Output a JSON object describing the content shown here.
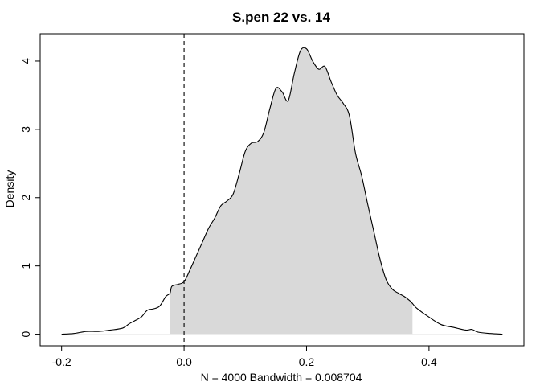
{
  "chart_data": {
    "type": "area",
    "title": "S.pen 22 vs. 14",
    "xlabel": "N = 4000   Bandwidth = 0.008704",
    "ylabel": "Density",
    "xlim": [
      -0.235,
      0.555
    ],
    "ylim": [
      -0.17,
      4.4
    ],
    "x_ticks": [
      -0.2,
      0.0,
      0.2,
      0.4
    ],
    "x_tick_labels": [
      "-0.2",
      "0.0",
      "0.2",
      "0.4"
    ],
    "y_ticks": [
      0,
      1,
      2,
      3,
      4
    ],
    "y_tick_labels": [
      "0",
      "1",
      "2",
      "3",
      "4"
    ],
    "reference_line_x": 0.0,
    "shaded_interval": [
      -0.023,
      0.373
    ],
    "grid": false,
    "legend": "none",
    "colors": {
      "fill": "#d9d9d9",
      "line": "#000000",
      "axis": "#000000"
    },
    "series": [
      {
        "x": [
          -0.2,
          -0.18,
          -0.16,
          -0.14,
          -0.12,
          -0.1,
          -0.09,
          -0.08,
          -0.07,
          -0.06,
          -0.05,
          -0.04,
          -0.03,
          -0.023,
          -0.02,
          -0.01,
          0.0,
          0.01,
          0.02,
          0.03,
          0.04,
          0.05,
          0.06,
          0.07,
          0.08,
          0.09,
          0.1,
          0.11,
          0.12,
          0.13,
          0.14,
          0.15,
          0.16,
          0.17,
          0.18,
          0.19,
          0.2,
          0.21,
          0.22,
          0.23,
          0.24,
          0.25,
          0.26,
          0.27,
          0.28,
          0.29,
          0.3,
          0.31,
          0.32,
          0.33,
          0.34,
          0.35,
          0.36,
          0.37,
          0.373,
          0.38,
          0.4,
          0.42,
          0.44,
          0.46,
          0.47,
          0.48,
          0.5,
          0.52
        ],
        "y": [
          0.0,
          0.01,
          0.04,
          0.04,
          0.06,
          0.09,
          0.15,
          0.2,
          0.25,
          0.35,
          0.37,
          0.41,
          0.55,
          0.6,
          0.7,
          0.73,
          0.77,
          0.95,
          1.15,
          1.35,
          1.55,
          1.7,
          1.88,
          1.95,
          2.05,
          2.35,
          2.68,
          2.8,
          2.82,
          2.95,
          3.3,
          3.6,
          3.55,
          3.42,
          3.82,
          4.15,
          4.18,
          4.0,
          3.88,
          3.92,
          3.7,
          3.5,
          3.38,
          3.2,
          2.65,
          2.32,
          1.9,
          1.5,
          1.1,
          0.8,
          0.66,
          0.6,
          0.55,
          0.48,
          0.45,
          0.38,
          0.25,
          0.14,
          0.1,
          0.06,
          0.07,
          0.03,
          0.01,
          0.0
        ]
      }
    ]
  }
}
